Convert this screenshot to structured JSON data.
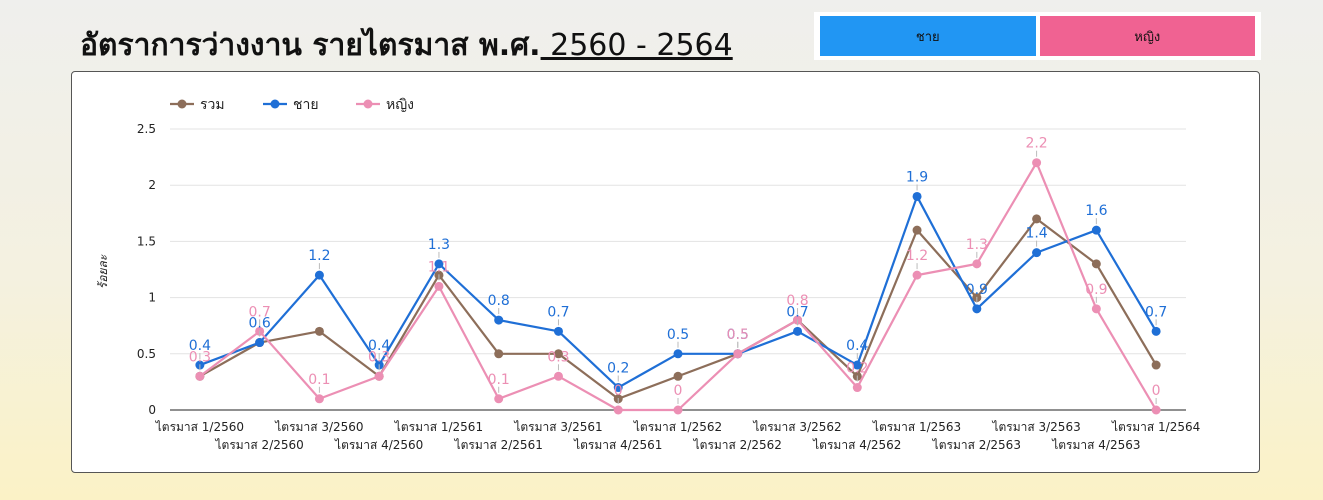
{
  "page": {
    "title_prefix": "อัตราการว่างงาน รายไตรมาส พ.ศ.",
    "title_years": " 2560 - 2564"
  },
  "toggles": [
    {
      "label": "ชาย",
      "color": "#2196f3"
    },
    {
      "label": "หญิง",
      "color": "#f06292"
    }
  ],
  "chart_data": {
    "type": "line",
    "title": "",
    "xlabel": "",
    "ylabel": "ร้อยละ",
    "ylim": [
      0,
      2.5
    ],
    "yticks": [
      "0",
      "0.5",
      "1",
      "1.5",
      "2",
      "2.5"
    ],
    "grid": true,
    "legend_position": "top-left",
    "categories": [
      "ไตรมาส 1/2560",
      "ไตรมาส 2/2560",
      "ไตรมาส 3/2560",
      "ไตรมาส 4/2560",
      "ไตรมาส 1/2561",
      "ไตรมาส 2/2561",
      "ไตรมาส 3/2561",
      "ไตรมาส 4/2561",
      "ไตรมาส 1/2562",
      "ไตรมาส 2/2562",
      "ไตรมาส 3/2562",
      "ไตรมาส 4/2562",
      "ไตรมาส 1/2563",
      "ไตรมาส 2/2563",
      "ไตรมาส 3/2563",
      "ไตรมาส 4/2563",
      "ไตรมาส 1/2564"
    ],
    "series": [
      {
        "name": "รวม",
        "color": "#8d6e5a",
        "labels": false,
        "values": [
          0.3,
          0.6,
          0.7,
          0.3,
          1.2,
          0.5,
          0.5,
          0.1,
          0.3,
          0.5,
          0.8,
          0.3,
          1.6,
          1.0,
          1.7,
          1.3,
          0.4
        ]
      },
      {
        "name": "ชาย",
        "color": "#1f6fd6",
        "labels": true,
        "values": [
          0.4,
          0.6,
          1.2,
          0.4,
          1.3,
          0.8,
          0.7,
          0.2,
          0.5,
          0.5,
          0.7,
          0.4,
          1.9,
          0.9,
          1.4,
          1.6,
          0.7
        ]
      },
      {
        "name": "หญิง",
        "color": "#ec8fb4",
        "labels": true,
        "values": [
          0.3,
          0.7,
          0.1,
          0.3,
          1.1,
          0.1,
          0.3,
          0.0,
          0.0,
          0.5,
          0.8,
          0.2,
          1.2,
          1.3,
          2.2,
          0.9,
          0.0
        ]
      }
    ]
  }
}
